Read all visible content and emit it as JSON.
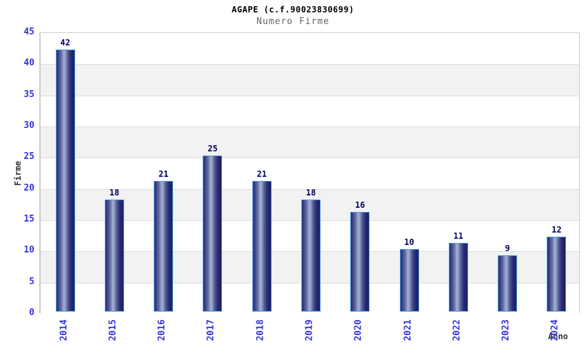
{
  "header": {
    "title": "AGAPE (c.f.90023830699)",
    "subtitle": "Numero Firme"
  },
  "chart_data": {
    "type": "bar",
    "title": "AGAPE (c.f.90023830699)",
    "subtitle": "Numero Firme",
    "categories": [
      "2014",
      "2015",
      "2016",
      "2017",
      "2018",
      "2019",
      "2020",
      "2021",
      "2022",
      "2023",
      "2024"
    ],
    "values": [
      42,
      18,
      21,
      25,
      21,
      18,
      16,
      10,
      11,
      9,
      12
    ],
    "xlabel": "Anno",
    "ylabel": "Firme",
    "ylim": [
      0,
      45
    ],
    "ytick_step": 5,
    "yticks": [
      "0",
      "5",
      "10",
      "15",
      "20",
      "25",
      "30",
      "35",
      "40",
      "45"
    ],
    "grid": "horizontal-alternating-bands",
    "legend": false,
    "bar_value_labels_shown": true,
    "xtick_rotation_deg": -90
  },
  "colors": {
    "background": "#ffffff",
    "tick_label": "#3333e0",
    "value_label": "#000066",
    "band_alt": "#f2f2f2",
    "band_main": "#ffffff",
    "grid_line": "#dcdcdc",
    "plot_border": "#cccccc",
    "bar_border": "#4d9be6",
    "bar_dark": "#1f2470",
    "bar_light": "#a8b2d2",
    "title": "#000000",
    "subtitle": "#666666",
    "axis_label": "#333333"
  }
}
